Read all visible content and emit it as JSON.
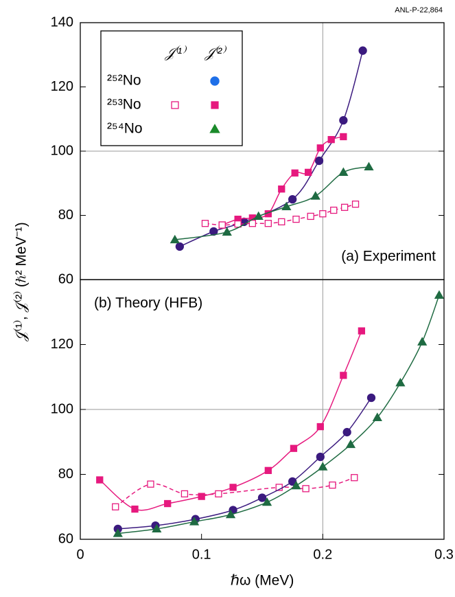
{
  "corner_note": "ANL-P-22,864",
  "x_label": "ℏω (MeV)",
  "y_label": "𝒥⁽¹⁾, 𝒥⁽²⁾ (ℏ² MeV⁻¹)",
  "legend": {
    "headers": [
      "𝒥⁽¹⁾",
      "𝒥⁽²⁾"
    ],
    "rows": [
      {
        "label": "²⁵²No",
        "j2": {
          "marker": "circle",
          "color": "#1e6fe8",
          "filled": true
        }
      },
      {
        "label": "²⁵³No",
        "j1": {
          "marker": "square",
          "color": "#e6197e",
          "filled": false
        },
        "j2": {
          "marker": "square",
          "color": "#e6197e",
          "filled": true
        }
      },
      {
        "label": "²⁵⁴No",
        "j2": {
          "marker": "triangle",
          "color": "#1a8a2a",
          "filled": true
        }
      }
    ]
  },
  "chart_data": [
    {
      "type": "line",
      "annotation": "(a) Experiment",
      "xlim": [
        0,
        0.3
      ],
      "ylim": [
        60,
        140
      ],
      "yticks": [
        60,
        80,
        100,
        120,
        140
      ],
      "refline": {
        "x": 0.2,
        "y": 100
      },
      "series": [
        {
          "marker": "circle",
          "color": "#3b1a7f",
          "filled": true,
          "dashed": false,
          "x": [
            0.082,
            0.11,
            0.135,
            0.175,
            0.197,
            0.217,
            0.233
          ],
          "values": [
            70.3,
            75,
            78,
            85,
            97,
            109.6,
            131.3
          ]
        },
        {
          "marker": "square",
          "color": "#e6197e",
          "filled": true,
          "dashed": false,
          "x": [
            0.117,
            0.13,
            0.142,
            0.155,
            0.166,
            0.177,
            0.188,
            0.198,
            0.207,
            0.217
          ],
          "values": [
            77,
            78.8,
            79.2,
            80.5,
            88.2,
            93.2,
            93.4,
            101,
            103.6,
            104.5
          ]
        },
        {
          "marker": "square",
          "color": "#e6197e",
          "filled": false,
          "dashed": true,
          "x": [
            0.103,
            0.117,
            0.13,
            0.142,
            0.155,
            0.166,
            0.178,
            0.19,
            0.2,
            0.209,
            0.218,
            0.227
          ],
          "values": [
            77.5,
            77,
            77.3,
            77.5,
            77.5,
            78,
            78.8,
            79.7,
            80.5,
            81.6,
            82.5,
            83.5
          ]
        },
        {
          "marker": "triangle",
          "color": "#1f6b42",
          "filled": true,
          "dashed": false,
          "x": [
            0.078,
            0.121,
            0.147,
            0.17,
            0.194,
            0.217,
            0.238
          ],
          "values": [
            72.4,
            74.8,
            79.7,
            82.7,
            86,
            93.4,
            95.1
          ]
        }
      ]
    },
    {
      "type": "line",
      "annotation": "(b) Theory (HFB)",
      "xlim": [
        0,
        0.3
      ],
      "xticks": [
        0,
        0.1,
        0.2,
        0.3
      ],
      "ylim": [
        60,
        140
      ],
      "yticks": [
        60,
        80,
        100,
        120
      ],
      "refline": {
        "x": 0.2,
        "y": 100
      },
      "series": [
        {
          "marker": "square",
          "color": "#e6197e",
          "filled": true,
          "dashed": false,
          "x": [
            0.016,
            0.045,
            0.072,
            0.1,
            0.126,
            0.155,
            0.176,
            0.198,
            0.217,
            0.232
          ],
          "values": [
            78.3,
            69.3,
            71,
            73.2,
            76,
            81.2,
            88,
            94.7,
            110.5,
            124.2
          ]
        },
        {
          "marker": "square",
          "color": "#e6197e",
          "filled": false,
          "dashed": true,
          "x": [
            0.029,
            0.058,
            0.086,
            0.114,
            0.164,
            0.186,
            0.208,
            0.226
          ],
          "values": [
            70,
            77,
            74,
            74,
            76,
            75.6,
            76.7,
            79
          ]
        },
        {
          "marker": "circle",
          "color": "#3b1a7f",
          "filled": true,
          "dashed": false,
          "x": [
            0.031,
            0.062,
            0.095,
            0.126,
            0.15,
            0.175,
            0.198,
            0.22,
            0.24
          ],
          "values": [
            63.2,
            64.2,
            66.2,
            69,
            72.8,
            77.8,
            85.4,
            93,
            103.6
          ]
        },
        {
          "marker": "triangle",
          "color": "#1f6b42",
          "filled": true,
          "dashed": false,
          "x": [
            0.031,
            0.063,
            0.094,
            0.124,
            0.154,
            0.178,
            0.2,
            0.223,
            0.245,
            0.264,
            0.282,
            0.296
          ],
          "values": [
            61.8,
            63.2,
            65.4,
            67.6,
            71.4,
            76.5,
            82.3,
            89.2,
            97.5,
            108.2,
            120.8,
            135.2
          ]
        }
      ]
    }
  ]
}
